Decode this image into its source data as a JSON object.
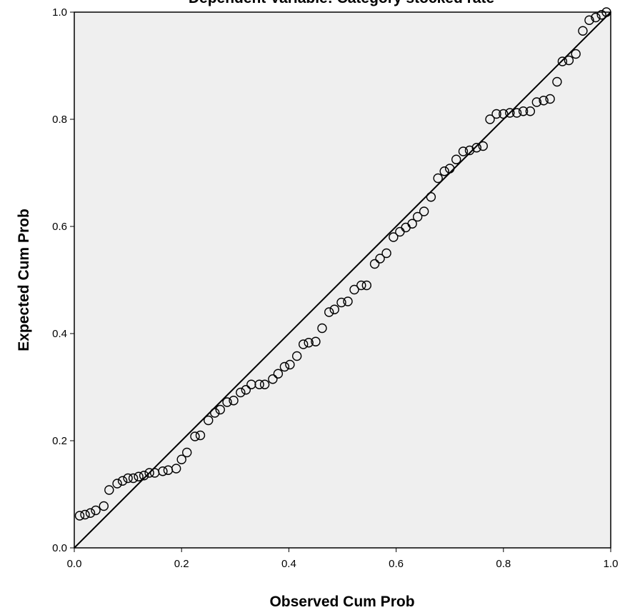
{
  "chart_data": {
    "type": "scatter",
    "title": "Dependent Variable: Category  stocked rate",
    "xlabel": "Observed Cum Prob",
    "ylabel": "Expected Cum Prob",
    "xlim": [
      0.0,
      1.0
    ],
    "ylim": [
      0.0,
      1.0
    ],
    "xticks": [
      "0.0",
      "0.2",
      "0.4",
      "0.6",
      "0.8",
      "1.0"
    ],
    "yticks": [
      "0.0",
      "0.2",
      "0.4",
      "0.6",
      "0.8",
      "1.0"
    ],
    "reference_line": [
      [
        0.0,
        0.0
      ],
      [
        1.0,
        1.0
      ]
    ],
    "grid": false,
    "colors": {
      "plot_bg": "#efefef",
      "marker_stroke": "#000000",
      "line": "#000000"
    },
    "points": [
      [
        0.01,
        0.06
      ],
      [
        0.02,
        0.062
      ],
      [
        0.03,
        0.065
      ],
      [
        0.04,
        0.07
      ],
      [
        0.055,
        0.078
      ],
      [
        0.065,
        0.108
      ],
      [
        0.08,
        0.12
      ],
      [
        0.09,
        0.125
      ],
      [
        0.1,
        0.13
      ],
      [
        0.11,
        0.13
      ],
      [
        0.12,
        0.133
      ],
      [
        0.13,
        0.135
      ],
      [
        0.14,
        0.14
      ],
      [
        0.15,
        0.14
      ],
      [
        0.165,
        0.143
      ],
      [
        0.175,
        0.145
      ],
      [
        0.19,
        0.148
      ],
      [
        0.2,
        0.165
      ],
      [
        0.21,
        0.178
      ],
      [
        0.225,
        0.208
      ],
      [
        0.235,
        0.21
      ],
      [
        0.25,
        0.238
      ],
      [
        0.262,
        0.252
      ],
      [
        0.272,
        0.258
      ],
      [
        0.285,
        0.272
      ],
      [
        0.297,
        0.275
      ],
      [
        0.31,
        0.29
      ],
      [
        0.32,
        0.295
      ],
      [
        0.33,
        0.305
      ],
      [
        0.345,
        0.305
      ],
      [
        0.355,
        0.305
      ],
      [
        0.37,
        0.315
      ],
      [
        0.38,
        0.325
      ],
      [
        0.392,
        0.338
      ],
      [
        0.402,
        0.342
      ],
      [
        0.415,
        0.358
      ],
      [
        0.427,
        0.38
      ],
      [
        0.437,
        0.383
      ],
      [
        0.45,
        0.385
      ],
      [
        0.462,
        0.41
      ],
      [
        0.475,
        0.44
      ],
      [
        0.485,
        0.445
      ],
      [
        0.498,
        0.458
      ],
      [
        0.51,
        0.46
      ],
      [
        0.522,
        0.482
      ],
      [
        0.535,
        0.49
      ],
      [
        0.545,
        0.49
      ],
      [
        0.56,
        0.53
      ],
      [
        0.57,
        0.54
      ],
      [
        0.582,
        0.55
      ],
      [
        0.595,
        0.58
      ],
      [
        0.607,
        0.59
      ],
      [
        0.618,
        0.598
      ],
      [
        0.63,
        0.605
      ],
      [
        0.64,
        0.618
      ],
      [
        0.652,
        0.628
      ],
      [
        0.665,
        0.655
      ],
      [
        0.678,
        0.69
      ],
      [
        0.69,
        0.703
      ],
      [
        0.7,
        0.708
      ],
      [
        0.712,
        0.725
      ],
      [
        0.725,
        0.74
      ],
      [
        0.737,
        0.742
      ],
      [
        0.75,
        0.747
      ],
      [
        0.762,
        0.75
      ],
      [
        0.775,
        0.8
      ],
      [
        0.787,
        0.81
      ],
      [
        0.8,
        0.81
      ],
      [
        0.812,
        0.812
      ],
      [
        0.825,
        0.812
      ],
      [
        0.837,
        0.815
      ],
      [
        0.85,
        0.815
      ],
      [
        0.862,
        0.832
      ],
      [
        0.875,
        0.835
      ],
      [
        0.887,
        0.838
      ],
      [
        0.9,
        0.87
      ],
      [
        0.91,
        0.908
      ],
      [
        0.922,
        0.91
      ],
      [
        0.935,
        0.922
      ],
      [
        0.948,
        0.965
      ],
      [
        0.96,
        0.985
      ],
      [
        0.972,
        0.99
      ],
      [
        0.983,
        0.995
      ],
      [
        0.992,
        1.0
      ]
    ]
  }
}
